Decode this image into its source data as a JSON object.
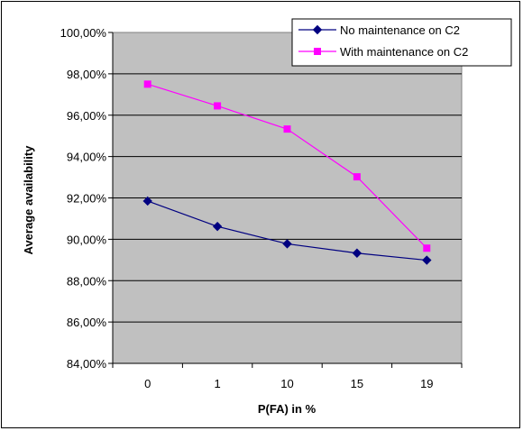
{
  "chart_data": {
    "type": "line",
    "title": "",
    "xlabel": "P(FA) in %",
    "ylabel": "Average availability",
    "categories": [
      "0",
      "1",
      "10",
      "15",
      "19"
    ],
    "ylim": [
      84,
      100
    ],
    "ytick_step": 2,
    "ytick_labels": [
      "84,00%",
      "86,00%",
      "88,00%",
      "90,00%",
      "92,00%",
      "94,00%",
      "96,00%",
      "98,00%",
      "100,00%"
    ],
    "plot_background": "#c0c0c0",
    "grid": true,
    "legend_position": "top-right",
    "series": [
      {
        "name": "No maintenance on C2",
        "values": [
          91.85,
          90.62,
          89.78,
          89.33,
          88.99
        ],
        "color": "#000080",
        "marker": "diamond"
      },
      {
        "name": "With maintenance on C2",
        "values": [
          97.5,
          96.45,
          95.33,
          93.02,
          89.57
        ],
        "color": "#ff00ff",
        "marker": "square"
      }
    ]
  }
}
